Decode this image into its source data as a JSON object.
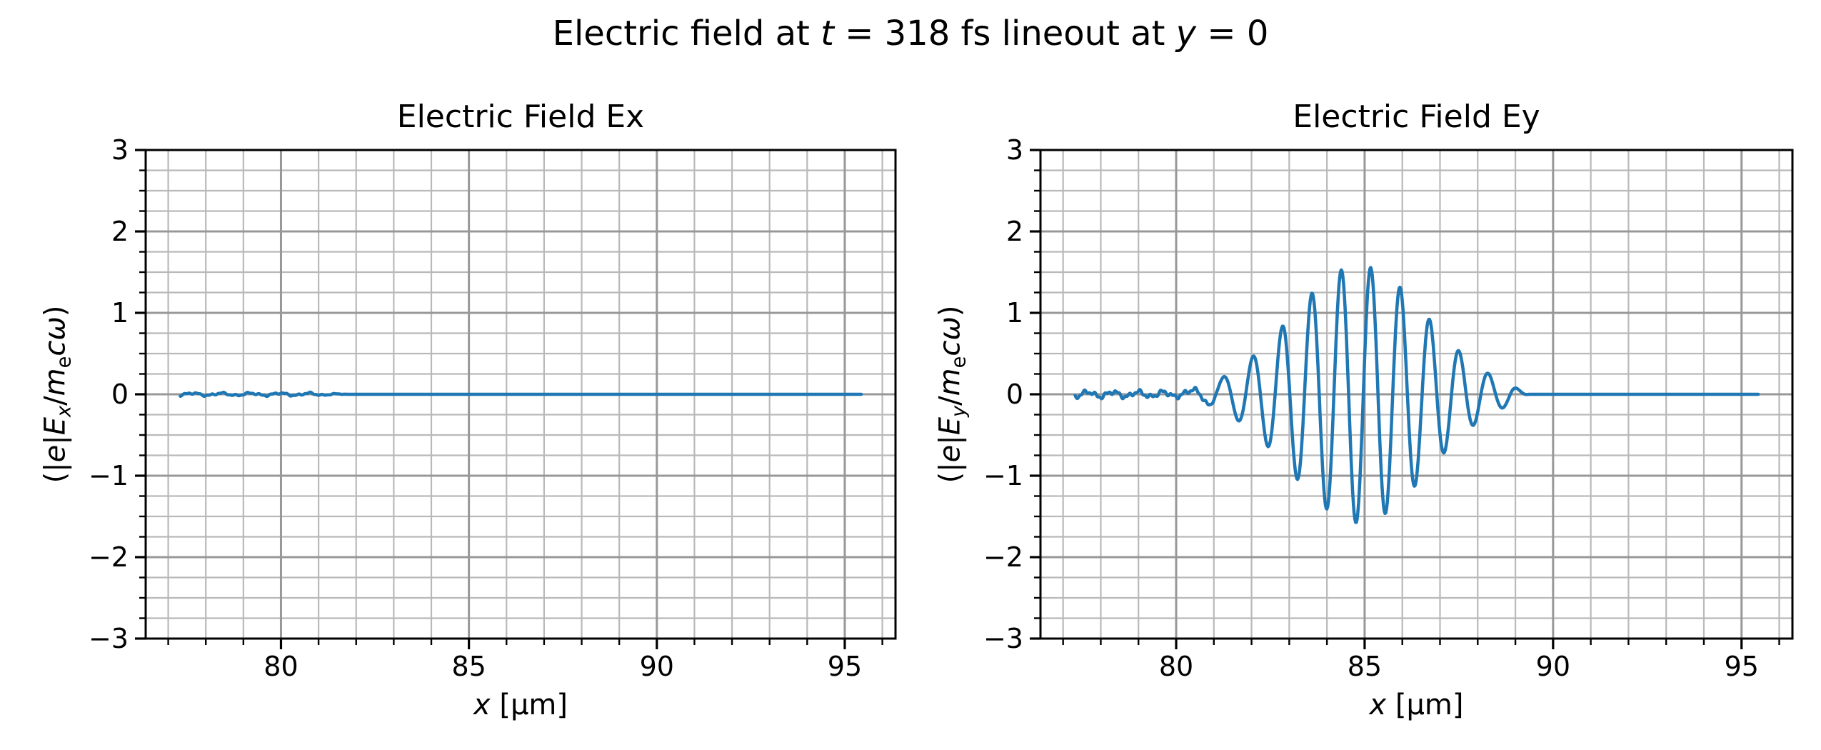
{
  "figure": {
    "background": "#ffffff",
    "suptitle_parts": [
      {
        "t": "Electric field at "
      },
      {
        "t": "t",
        "i": true
      },
      {
        "t": " = 318 fs lineout at "
      },
      {
        "t": "y",
        "i": true
      },
      {
        "t": " = 0"
      }
    ],
    "grid": {
      "major_color": "#989898",
      "minor_color": "#b9b9b9"
    },
    "spine_color": "#000000",
    "tick_color": "#000000"
  },
  "chart_data": [
    {
      "type": "line",
      "title": "Electric Field Ex",
      "xlabel_parts": [
        {
          "t": "x",
          "i": true
        },
        {
          "t": " [μm]"
        }
      ],
      "ylabel_parts": [
        {
          "t": "(|"
        },
        {
          "t": "e",
          "i": true
        },
        {
          "t": "|"
        },
        {
          "t": "E",
          "i": true
        },
        {
          "t": "x",
          "i": true,
          "sub": true
        },
        {
          "t": "/"
        },
        {
          "t": "m",
          "i": true
        },
        {
          "t": "e",
          "sub": true
        },
        {
          "t": "c",
          "i": true
        },
        {
          "t": "ω",
          "i": true
        },
        {
          "t": ")"
        }
      ],
      "xlim": [
        76.4,
        96.35
      ],
      "ylim": [
        -3,
        3
      ],
      "xticks": {
        "major": [
          80,
          85,
          90,
          95
        ],
        "major_labels": [
          "80",
          "85",
          "90",
          "95"
        ],
        "minor_step": 1
      },
      "yticks": {
        "major": [
          -3,
          -2,
          -1,
          0,
          1,
          2,
          3
        ],
        "major_labels": [
          "−3",
          "−2",
          "−1",
          "0",
          "1",
          "2",
          "3"
        ],
        "minor_step": 0.25
      },
      "line_color": "#1f77b4",
      "series": {
        "name": "Ex",
        "summary": "essentially zero everywhere; tiny plasma noise (±0.03) for x < 81.5 μm, exactly 0 to x = 95.44",
        "x_start": 77.32,
        "x_end": 95.44,
        "sample_step": 0.02,
        "noise": {
          "amps": [
            0.014,
            0.008,
            0.005
          ],
          "freqs": [
            8.1,
            19.0,
            41.0
          ],
          "phases": [
            1.0,
            0.0,
            0.7
          ],
          "fade_start": 80.9,
          "fade_end": 81.8
        },
        "pulse": null
      }
    },
    {
      "type": "line",
      "title": "Electric Field Ey",
      "xlabel_parts": [
        {
          "t": "x",
          "i": true
        },
        {
          "t": " [μm]"
        }
      ],
      "ylabel_parts": [
        {
          "t": "(|"
        },
        {
          "t": "e",
          "i": true
        },
        {
          "t": "|"
        },
        {
          "t": "E",
          "i": true
        },
        {
          "t": "y",
          "i": true,
          "sub": true
        },
        {
          "t": "/"
        },
        {
          "t": "m",
          "i": true
        },
        {
          "t": "e",
          "sub": true
        },
        {
          "t": "c",
          "i": true
        },
        {
          "t": "ω",
          "i": true
        },
        {
          "t": ")"
        }
      ],
      "xlim": [
        76.4,
        96.35
      ],
      "ylim": [
        -3,
        3
      ],
      "xticks": {
        "major": [
          80,
          85,
          90,
          95
        ],
        "major_labels": [
          "80",
          "85",
          "90",
          "95"
        ],
        "minor_step": 1
      },
      "yticks": {
        "major": [
          -3,
          -2,
          -1,
          0,
          1,
          2,
          3
        ],
        "major_labels": [
          "−3",
          "−2",
          "−1",
          "0",
          "1",
          "2",
          "3"
        ],
        "minor_step": 0.25
      },
      "line_color": "#1f77b4",
      "series": {
        "name": "Ey",
        "summary": "laser wave packet centered near x = 84.85 μm (peak ±1.58, wavelength 0.78 μm) with noise (±0.06) for x < 81 and flat 0 from ~89.3 to 95.44",
        "x_start": 77.32,
        "x_end": 95.44,
        "sample_step": 0.02,
        "noise": {
          "amps": [
            0.03,
            0.02,
            0.012
          ],
          "freqs": [
            9.4,
            21.3,
            47.0
          ],
          "phases": [
            0.5,
            2.1,
            0.0
          ],
          "fade_start": 80.7,
          "fade_end": 81.25
        },
        "pulse": {
          "amplitude": 1.58,
          "center": 84.85,
          "sigma": 1.8,
          "wavelength": 0.78,
          "phase": -0.927,
          "cut_lo": 80.2,
          "cut_hi": 89.35,
          "edge_fade": 0.45
        },
        "measured_extrema": [
          [
            81.26,
            0.18
          ],
          [
            81.64,
            -0.3
          ],
          [
            82.04,
            0.51
          ],
          [
            82.42,
            -0.63
          ],
          [
            82.79,
            0.93
          ],
          [
            83.18,
            -1.07
          ],
          [
            83.58,
            1.31
          ],
          [
            84.0,
            -1.42
          ],
          [
            84.38,
            1.54
          ],
          [
            84.77,
            -1.59
          ],
          [
            85.15,
            1.54
          ],
          [
            85.57,
            -1.44
          ],
          [
            85.94,
            1.34
          ],
          [
            86.36,
            -1.1
          ],
          [
            86.74,
            0.97
          ],
          [
            87.13,
            -0.66
          ],
          [
            87.51,
            0.52
          ],
          [
            87.89,
            -0.3
          ],
          [
            88.26,
            0.18
          ]
        ]
      }
    }
  ]
}
